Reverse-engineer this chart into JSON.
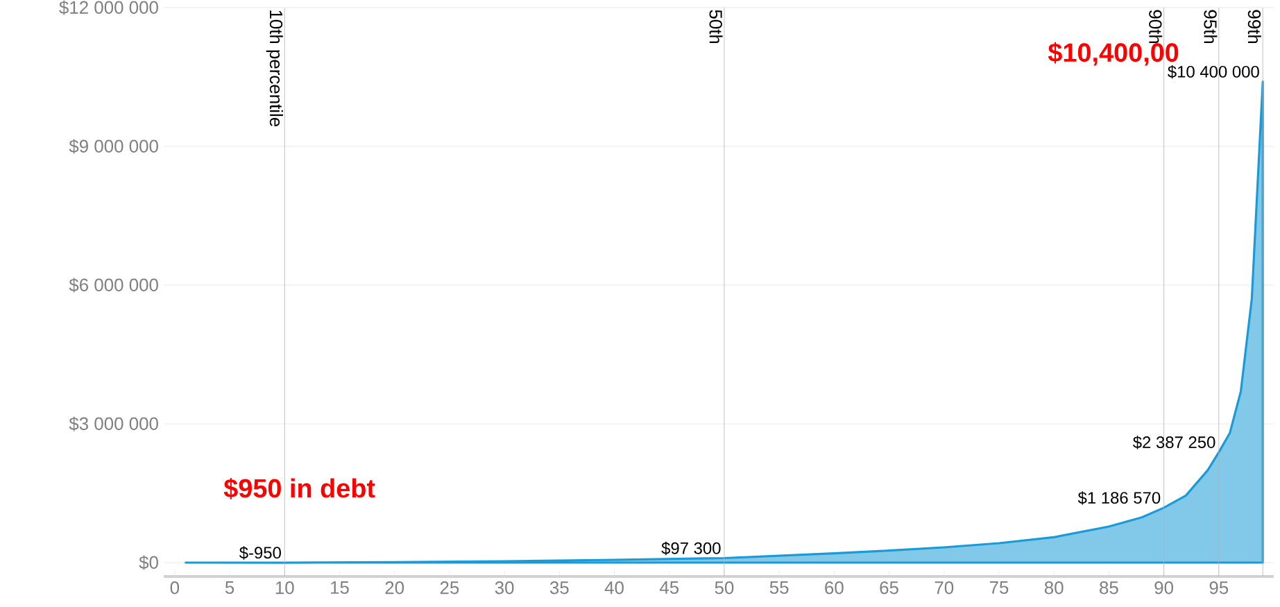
{
  "chart_data": {
    "type": "area",
    "x": [
      1,
      10,
      20,
      30,
      40,
      50,
      60,
      65,
      70,
      75,
      80,
      85,
      88,
      90,
      92,
      94,
      95,
      96,
      97,
      98,
      99
    ],
    "values": [
      0,
      -950,
      10000,
      30000,
      60000,
      97300,
      200000,
      260000,
      330000,
      420000,
      550000,
      780000,
      980000,
      1186570,
      1450000,
      2000000,
      2387250,
      2800000,
      3700000,
      5700000,
      10400000
    ],
    "value_labels": [
      null,
      "$-950",
      null,
      null,
      null,
      "$97 300",
      null,
      null,
      null,
      null,
      null,
      null,
      null,
      "$1 186 570",
      null,
      null,
      "$2 387 250",
      null,
      null,
      null,
      "$10 400 000"
    ],
    "color": "#1a9bd7",
    "xlim": [
      -1,
      100
    ],
    "ylim": [
      -300000,
      12000000
    ],
    "xticks": [
      0,
      5,
      10,
      15,
      20,
      25,
      30,
      35,
      40,
      45,
      50,
      55,
      60,
      65,
      70,
      75,
      80,
      85,
      90,
      95
    ],
    "yticks": [
      {
        "value": 0,
        "label": "$0"
      },
      {
        "value": 3000000,
        "label": "$3 000 000"
      },
      {
        "value": 6000000,
        "label": "$6 000 000"
      },
      {
        "value": 9000000,
        "label": "$9 000 000"
      },
      {
        "value": 12000000,
        "label": "$12 000 000"
      }
    ],
    "grid": "y",
    "ref_lines": [
      {
        "axis": "x",
        "value": 10,
        "label": "10th percentile"
      },
      {
        "axis": "x",
        "value": 50,
        "label": "50th"
      },
      {
        "axis": "x",
        "value": 90,
        "label": "90th"
      },
      {
        "axis": "x",
        "value": 95,
        "label": "95th"
      },
      {
        "axis": "x",
        "value": 99,
        "label": "99th"
      }
    ],
    "annotations": [
      "$10,400,00",
      "$950 in debt"
    ]
  }
}
